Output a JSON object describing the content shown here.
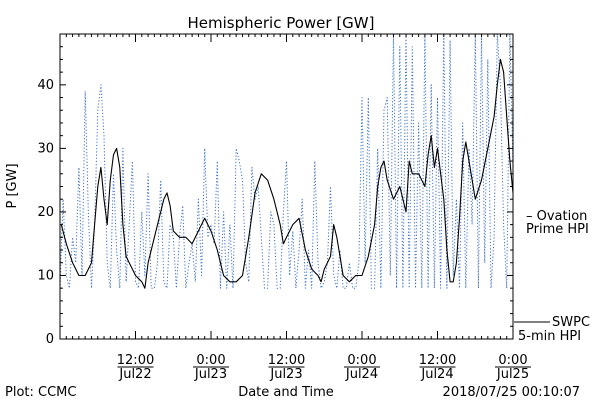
{
  "chart_data": {
    "type": "line",
    "title": "Hemispheric Power [GW]",
    "ylabel": "P [GW]",
    "xlabel": "Date and Time",
    "ylim": [
      0,
      48
    ],
    "xlim_hours": [
      0,
      72
    ],
    "yticks": [
      0,
      10,
      20,
      30,
      40
    ],
    "xticks": [
      {
        "time": "12:00",
        "date": "Jul22",
        "hour": 12
      },
      {
        "time": "0:00",
        "date": "Jul23",
        "hour": 24
      },
      {
        "time": "12:00",
        "date": "Jul23",
        "hour": 36
      },
      {
        "time": "0:00",
        "date": "Jul24",
        "hour": 48
      },
      {
        "time": "12:00",
        "date": "Jul24",
        "hour": 60
      },
      {
        "time": "0:00",
        "date": "Jul25",
        "hour": 72
      }
    ],
    "grid": false,
    "legend_position": "right",
    "series": [
      {
        "name": "SWPC 5-min HPI",
        "legend_lines": [
          "SWPC",
          "5-min HPI"
        ],
        "color": "#000000",
        "style": "solid",
        "points": [
          [
            0.2,
            18
          ],
          [
            1,
            15
          ],
          [
            2,
            12
          ],
          [
            3,
            10
          ],
          [
            4,
            10
          ],
          [
            5,
            12
          ],
          [
            5.5,
            18
          ],
          [
            6,
            24
          ],
          [
            6.5,
            27
          ],
          [
            7,
            22
          ],
          [
            7.5,
            18
          ],
          [
            8,
            25
          ],
          [
            8.5,
            29
          ],
          [
            9,
            30
          ],
          [
            9.5,
            27
          ],
          [
            10,
            18
          ],
          [
            10.5,
            13
          ],
          [
            11,
            12
          ],
          [
            11.5,
            11
          ],
          [
            12,
            10
          ],
          [
            13,
            9
          ],
          [
            13.5,
            8
          ],
          [
            14,
            12
          ],
          [
            15,
            16
          ],
          [
            16,
            20
          ],
          [
            16.5,
            22
          ],
          [
            17,
            23
          ],
          [
            17.5,
            21
          ],
          [
            18,
            17
          ],
          [
            19,
            16
          ],
          [
            20,
            16
          ],
          [
            21,
            15
          ],
          [
            22,
            17
          ],
          [
            23,
            19
          ],
          [
            24,
            17
          ],
          [
            25,
            14
          ],
          [
            26,
            10
          ],
          [
            27,
            9
          ],
          [
            28,
            9
          ],
          [
            29,
            10
          ],
          [
            30,
            16
          ],
          [
            31,
            23
          ],
          [
            32,
            26
          ],
          [
            33,
            25
          ],
          [
            34,
            22
          ],
          [
            35,
            18
          ],
          [
            35.5,
            15
          ],
          [
            36,
            16
          ],
          [
            37,
            18
          ],
          [
            38,
            19
          ],
          [
            39,
            14
          ],
          [
            40,
            11
          ],
          [
            41,
            10
          ],
          [
            41.5,
            9
          ],
          [
            42,
            11
          ],
          [
            43,
            13
          ],
          [
            43.5,
            18
          ],
          [
            44,
            16
          ],
          [
            44.5,
            13
          ],
          [
            45,
            10
          ],
          [
            46,
            9
          ],
          [
            47,
            10
          ],
          [
            48,
            10
          ],
          [
            49,
            13
          ],
          [
            50,
            18
          ],
          [
            50.5,
            24
          ],
          [
            51,
            27
          ],
          [
            51.5,
            28
          ],
          [
            52,
            25
          ],
          [
            53,
            22
          ],
          [
            54,
            24
          ],
          [
            55,
            20
          ],
          [
            55.5,
            28
          ],
          [
            56,
            26
          ],
          [
            57,
            26
          ],
          [
            58,
            24
          ],
          [
            58.5,
            29
          ],
          [
            59,
            32
          ],
          [
            59.5,
            27
          ],
          [
            60,
            30
          ],
          [
            61,
            22
          ],
          [
            61.5,
            14
          ],
          [
            62,
            9
          ],
          [
            62.5,
            9
          ],
          [
            63,
            12
          ],
          [
            63.5,
            19
          ],
          [
            64,
            28
          ],
          [
            64.5,
            31
          ],
          [
            65,
            28
          ],
          [
            66,
            22
          ],
          [
            67,
            25
          ],
          [
            68,
            30
          ],
          [
            69,
            35
          ],
          [
            69.5,
            40
          ],
          [
            70,
            44
          ],
          [
            70.5,
            42
          ],
          [
            71,
            35
          ],
          [
            71.5,
            28
          ],
          [
            72,
            23
          ]
        ]
      },
      {
        "name": "Ovation Prime HPI",
        "legend_lines": [
          "– Ovation",
          "Prime HPI"
        ],
        "color": "#3a6fc4",
        "style": "dotted",
        "points": [
          [
            0,
            8
          ],
          [
            0.5,
            22
          ],
          [
            1,
            10
          ],
          [
            1.5,
            8
          ],
          [
            2,
            16
          ],
          [
            2.5,
            12
          ],
          [
            3,
            27
          ],
          [
            3.5,
            10
          ],
          [
            4,
            39
          ],
          [
            4.5,
            20
          ],
          [
            5,
            8
          ],
          [
            5.5,
            18
          ],
          [
            6,
            36
          ],
          [
            6.5,
            40
          ],
          [
            7,
            32
          ],
          [
            7.5,
            12
          ],
          [
            8,
            8
          ],
          [
            8.5,
            26
          ],
          [
            9,
            14
          ],
          [
            9.5,
            8
          ],
          [
            10,
            30
          ],
          [
            10.5,
            9
          ],
          [
            11,
            18
          ],
          [
            11.5,
            28
          ],
          [
            12,
            9
          ],
          [
            12.5,
            8
          ],
          [
            13,
            20
          ],
          [
            13.5,
            10
          ],
          [
            14,
            26
          ],
          [
            14.5,
            8
          ],
          [
            15,
            8
          ],
          [
            15.5,
            12
          ],
          [
            16,
            25
          ],
          [
            16.5,
            9
          ],
          [
            17,
            8
          ],
          [
            17.5,
            18
          ],
          [
            18,
            16
          ],
          [
            18.5,
            8
          ],
          [
            19,
            16
          ],
          [
            19.5,
            21
          ],
          [
            20,
            8
          ],
          [
            20.5,
            12
          ],
          [
            21,
            15
          ],
          [
            21.5,
            9
          ],
          [
            22,
            22
          ],
          [
            22.5,
            10
          ],
          [
            23,
            30
          ],
          [
            23.5,
            16
          ],
          [
            24,
            18
          ],
          [
            24.5,
            15
          ],
          [
            25,
            28
          ],
          [
            25.5,
            8
          ],
          [
            26,
            20
          ],
          [
            26.5,
            8
          ],
          [
            27,
            18
          ],
          [
            27.5,
            8
          ],
          [
            28,
            30
          ],
          [
            28.5,
            28
          ],
          [
            29,
            25
          ],
          [
            29.5,
            12
          ],
          [
            30,
            9
          ],
          [
            30.5,
            27
          ],
          [
            31,
            22
          ],
          [
            31.5,
            24
          ],
          [
            32,
            16
          ],
          [
            32.5,
            8
          ],
          [
            33,
            8
          ],
          [
            33.5,
            20
          ],
          [
            34,
            18
          ],
          [
            34.5,
            8
          ],
          [
            35,
            8
          ],
          [
            35.5,
            20
          ],
          [
            36,
            28
          ],
          [
            36.5,
            10
          ],
          [
            37,
            17
          ],
          [
            37.5,
            8
          ],
          [
            38,
            14
          ],
          [
            38.5,
            22
          ],
          [
            39,
            8
          ],
          [
            39.5,
            14
          ],
          [
            40,
            8
          ],
          [
            40.5,
            28
          ],
          [
            41,
            12
          ],
          [
            41.5,
            8
          ],
          [
            42,
            9
          ],
          [
            42.5,
            12
          ],
          [
            43,
            24
          ],
          [
            43.5,
            10
          ],
          [
            44,
            8
          ],
          [
            44.5,
            14
          ],
          [
            45,
            8
          ],
          [
            45.5,
            8
          ],
          [
            46,
            12
          ],
          [
            46.5,
            8
          ],
          [
            47,
            8
          ],
          [
            47.5,
            12
          ],
          [
            48,
            38
          ],
          [
            48.5,
            12
          ],
          [
            49,
            38
          ],
          [
            49.5,
            8
          ],
          [
            50,
            8
          ],
          [
            50.5,
            30
          ],
          [
            51,
            8
          ],
          [
            51.5,
            36
          ],
          [
            52,
            38
          ],
          [
            52.5,
            10
          ],
          [
            53,
            48
          ],
          [
            53.5,
            8
          ],
          [
            54,
            46
          ],
          [
            54.5,
            8
          ],
          [
            55,
            48
          ],
          [
            55.5,
            8
          ],
          [
            56,
            46
          ],
          [
            56.5,
            8
          ],
          [
            57,
            34
          ],
          [
            57.5,
            8
          ],
          [
            58,
            48
          ],
          [
            58.5,
            8
          ],
          [
            59,
            40
          ],
          [
            59.5,
            8
          ],
          [
            60,
            38
          ],
          [
            60.5,
            8
          ],
          [
            61,
            48
          ],
          [
            61.5,
            8
          ],
          [
            62,
            47
          ],
          [
            62.5,
            10
          ],
          [
            63,
            22
          ],
          [
            63.5,
            8
          ],
          [
            64,
            34
          ],
          [
            64.5,
            8
          ],
          [
            65,
            30
          ],
          [
            65.5,
            18
          ],
          [
            66,
            48
          ],
          [
            66.5,
            8
          ],
          [
            67,
            48
          ],
          [
            67.5,
            12
          ],
          [
            68,
            44
          ],
          [
            68.5,
            8
          ],
          [
            69,
            16
          ],
          [
            69.5,
            48
          ],
          [
            70,
            40
          ],
          [
            70.5,
            18
          ],
          [
            71,
            8
          ],
          [
            71.5,
            48
          ],
          [
            72,
            27
          ]
        ]
      }
    ]
  },
  "footer": {
    "plot_credit": "Plot: CCMC",
    "timestamp": "2018/07/25 00:10:07"
  }
}
